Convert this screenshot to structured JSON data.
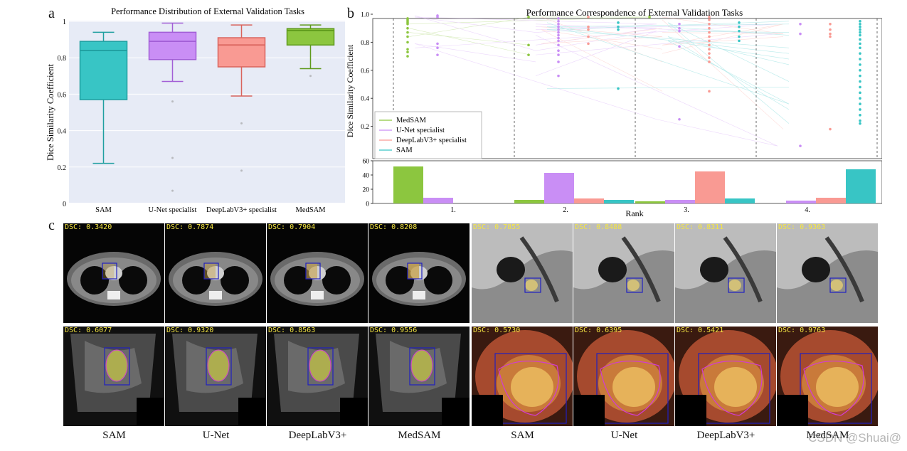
{
  "panels": {
    "a": "a",
    "b": "b",
    "c": "c"
  },
  "chart_data": [
    {
      "type": "box",
      "title": "Performance Distribution of External Validation Tasks",
      "ylabel": "Dice Similarity Coefficient",
      "ylim": [
        0,
        1
      ],
      "yticks": [
        "0",
        "0.2",
        "0.4",
        "0.6",
        "0.8",
        "1"
      ],
      "categories": [
        "SAM",
        "U-Net specialist",
        "DeepLabV3+ specialist",
        "MedSAM"
      ],
      "boxes": [
        {
          "name": "SAM",
          "whisker_low": 0.22,
          "q1": 0.57,
          "median": 0.84,
          "q3": 0.89,
          "whisker_high": 0.94,
          "color": "#38c5c5",
          "edge": "#1f9fa0",
          "outliers": []
        },
        {
          "name": "U-Net specialist",
          "whisker_low": 0.67,
          "q1": 0.79,
          "median": 0.89,
          "q3": 0.94,
          "whisker_high": 0.99,
          "color": "#c98ef5",
          "edge": "#a25fd6",
          "outliers": [
            0.56,
            0.25,
            0.07
          ]
        },
        {
          "name": "DeepLabV3+ specialist",
          "whisker_low": 0.59,
          "q1": 0.75,
          "median": 0.87,
          "q3": 0.91,
          "whisker_high": 0.98,
          "color": "#f99a93",
          "edge": "#d9645d",
          "outliers": [
            0.44,
            0.18
          ]
        },
        {
          "name": "MedSAM",
          "whisker_low": 0.74,
          "q1": 0.87,
          "median": 0.95,
          "q3": 0.96,
          "whisker_high": 0.98,
          "color": "#8cc63f",
          "edge": "#5f9a1c",
          "outliers": [
            0.7
          ]
        }
      ]
    },
    {
      "type": "line",
      "title": "Performance Correspondence of External Validation Tasks",
      "ylabel": "Dice Similarity Coefficient",
      "ylim": [
        0,
        1
      ],
      "yticks": [
        "0.2",
        "0.4",
        "0.6",
        "0.8",
        "1.0"
      ],
      "legend": "bottom-left",
      "series": [
        {
          "name": "MedSAM",
          "color": "#8cc63f",
          "points": [
            [
              1,
              0.97
            ],
            [
              1,
              0.96
            ],
            [
              1,
              0.95
            ],
            [
              1,
              0.94
            ],
            [
              1,
              0.93
            ],
            [
              1,
              0.9
            ],
            [
              1,
              0.87
            ],
            [
              1,
              0.84
            ],
            [
              1,
              0.8
            ],
            [
              1,
              0.75
            ],
            [
              1,
              0.73
            ],
            [
              1,
              0.7
            ],
            [
              2,
              0.98
            ],
            [
              2,
              0.78
            ],
            [
              2,
              0.71
            ],
            [
              3,
              0.98
            ]
          ]
        },
        {
          "name": "U-Net specialist",
          "color": "#c98ef5",
          "points": [
            [
              1,
              0.99
            ],
            [
              1,
              0.98
            ],
            [
              1,
              0.79
            ],
            [
              1,
              0.76
            ],
            [
              1,
              0.71
            ],
            [
              2,
              0.97
            ],
            [
              2,
              0.95
            ],
            [
              2,
              0.93
            ],
            [
              2,
              0.91
            ],
            [
              2,
              0.89
            ],
            [
              2,
              0.87
            ],
            [
              2,
              0.85
            ],
            [
              2,
              0.83
            ],
            [
              2,
              0.81
            ],
            [
              2,
              0.78
            ],
            [
              2,
              0.74
            ],
            [
              2,
              0.71
            ],
            [
              2,
              0.66
            ],
            [
              2,
              0.56
            ],
            [
              3,
              0.93
            ],
            [
              3,
              0.9
            ],
            [
              3,
              0.88
            ],
            [
              3,
              0.77
            ],
            [
              3,
              0.25
            ],
            [
              4,
              0.93
            ],
            [
              4,
              0.86
            ],
            [
              4,
              0.06
            ]
          ]
        },
        {
          "name": "DeepLabV3+ specialist",
          "color": "#f99a93",
          "points": [
            [
              2,
              0.98
            ],
            [
              2,
              0.91
            ],
            [
              2,
              0.89
            ],
            [
              2,
              0.84
            ],
            [
              2,
              0.79
            ],
            [
              3,
              0.98
            ],
            [
              3,
              0.96
            ],
            [
              3,
              0.93
            ],
            [
              3,
              0.9
            ],
            [
              3,
              0.87
            ],
            [
              3,
              0.84
            ],
            [
              3,
              0.81
            ],
            [
              3,
              0.78
            ],
            [
              3,
              0.75
            ],
            [
              3,
              0.72
            ],
            [
              3,
              0.69
            ],
            [
              3,
              0.66
            ],
            [
              3,
              0.45
            ],
            [
              4,
              0.93
            ],
            [
              4,
              0.89
            ],
            [
              4,
              0.86
            ],
            [
              4,
              0.84
            ],
            [
              4,
              0.18
            ]
          ]
        },
        {
          "name": "SAM",
          "color": "#38c5c5",
          "points": [
            [
              2,
              0.94
            ],
            [
              2,
              0.91
            ],
            [
              2,
              0.89
            ],
            [
              2,
              0.47
            ],
            [
              3,
              0.94
            ],
            [
              3,
              0.91
            ],
            [
              3,
              0.88
            ],
            [
              3,
              0.84
            ],
            [
              3,
              0.81
            ],
            [
              4,
              0.95
            ],
            [
              4,
              0.93
            ],
            [
              4,
              0.91
            ],
            [
              4,
              0.89
            ],
            [
              4,
              0.87
            ],
            [
              4,
              0.85
            ],
            [
              4,
              0.82
            ],
            [
              4,
              0.79
            ],
            [
              4,
              0.76
            ],
            [
              4,
              0.72
            ],
            [
              4,
              0.68
            ],
            [
              4,
              0.64
            ],
            [
              4,
              0.6
            ],
            [
              4,
              0.56
            ],
            [
              4,
              0.52
            ],
            [
              4,
              0.48
            ],
            [
              4,
              0.44
            ],
            [
              4,
              0.4
            ],
            [
              4,
              0.36
            ],
            [
              4,
              0.32
            ],
            [
              4,
              0.28
            ],
            [
              4,
              0.24
            ],
            [
              4,
              0.22
            ]
          ]
        }
      ]
    },
    {
      "type": "bar",
      "xlabel": "Rank",
      "ylim": [
        0,
        60
      ],
      "yticks": [
        "0",
        "20",
        "40",
        "60"
      ],
      "categories": [
        "1.",
        "2.",
        "3.",
        "4."
      ],
      "series": [
        {
          "name": "MedSAM",
          "color": "#8cc63f",
          "values": [
            52,
            5,
            3,
            0
          ]
        },
        {
          "name": "U-Net specialist",
          "color": "#c98ef5",
          "values": [
            8,
            43,
            5,
            4
          ]
        },
        {
          "name": "DeepLabV3+ specialist",
          "color": "#f99a93",
          "values": [
            0,
            7,
            45,
            8
          ]
        },
        {
          "name": "SAM",
          "color": "#38c5c5",
          "values": [
            0,
            5,
            7,
            48
          ]
        }
      ]
    }
  ],
  "examples": {
    "column_labels": [
      "SAM",
      "U-Net",
      "DeepLabV3+",
      "MedSAM"
    ],
    "groups": [
      {
        "kind": "ct",
        "dsc": [
          "DSC: 0.3420",
          "DSC: 0.7874",
          "DSC: 0.7904",
          "DSC: 0.8208"
        ]
      },
      {
        "kind": "mri",
        "dsc": [
          "DSC: 0.7855",
          "DSC: 0.8488",
          "DSC: 0.8311",
          "DSC: 0.9363"
        ]
      },
      {
        "kind": "us",
        "dsc": [
          "DSC: 0.6077",
          "DSC: 0.9320",
          "DSC: 0.8563",
          "DSC: 0.9556"
        ]
      },
      {
        "kind": "endo",
        "dsc": [
          "DSC: 0.5730",
          "DSC: 0.6395",
          "DSC: 0.5421",
          "DSC: 0.9763"
        ]
      }
    ]
  },
  "watermark": "CSDN @Shuai@"
}
